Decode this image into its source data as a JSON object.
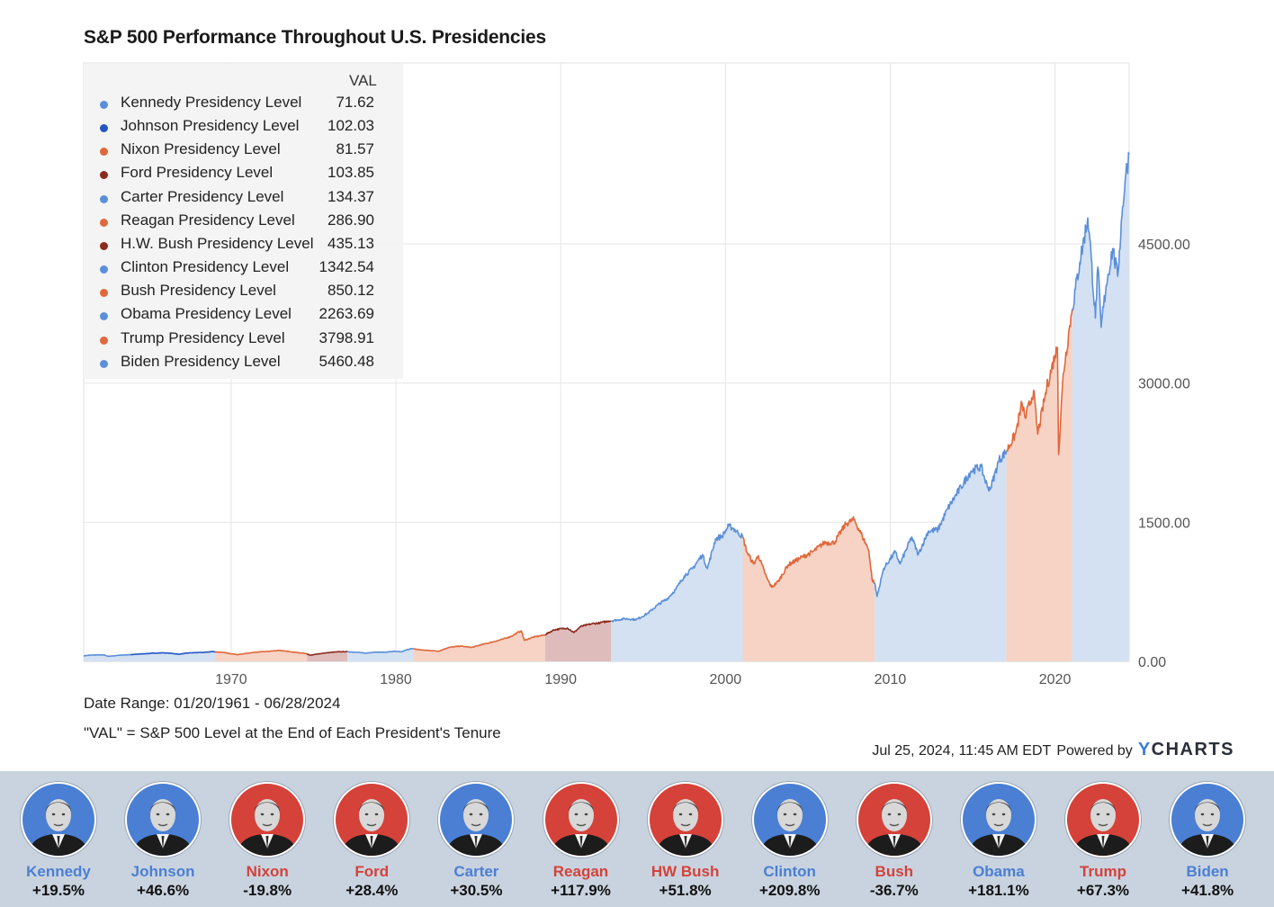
{
  "title": "S&P 500 Performance Throughout U.S. Presidencies",
  "colors": {
    "dem": "#5b8fd9",
    "rep": "#e0683c",
    "rep_dark": "#8c2a1e",
    "dem_dark": "#2456c4",
    "dem_fill": "#d3e1f2",
    "rep_fill": "#f6d3c5",
    "rep_dark_fill": "#dfbcbc",
    "strip_bg": "#c9d3df",
    "portrait_dem": "#4a7fd4",
    "portrait_rep": "#d4423a"
  },
  "legend": {
    "header": "VAL",
    "items": [
      {
        "label": "Kennedy Presidency Level",
        "value": "71.62",
        "color": "#5b8fd9"
      },
      {
        "label": "Johnson Presidency Level",
        "value": "102.03",
        "color": "#2456c4"
      },
      {
        "label": "Nixon Presidency Level",
        "value": "81.57",
        "color": "#e0683c"
      },
      {
        "label": "Ford Presidency Level",
        "value": "103.85",
        "color": "#8c2a1e"
      },
      {
        "label": "Carter Presidency Level",
        "value": "134.37",
        "color": "#5b8fd9"
      },
      {
        "label": "Reagan Presidency Level",
        "value": "286.90",
        "color": "#e0683c"
      },
      {
        "label": "H.W. Bush Presidency Level",
        "value": "435.13",
        "color": "#8c2a1e"
      },
      {
        "label": "Clinton Presidency Level",
        "value": "1342.54",
        "color": "#5b8fd9"
      },
      {
        "label": "Bush Presidency Level",
        "value": "850.12",
        "color": "#e0683c"
      },
      {
        "label": "Obama Presidency Level",
        "value": "2263.69",
        "color": "#5b8fd9"
      },
      {
        "label": "Trump Presidency Level",
        "value": "3798.91",
        "color": "#e0683c"
      },
      {
        "label": "Biden Presidency Level",
        "value": "5460.48",
        "color": "#5b8fd9"
      }
    ]
  },
  "notes": {
    "date_range": "Date Range: 01/20/1961 - 06/28/2024",
    "val_def": "\"VAL\" = S&P 500 Level at the End of Each President's Tenure"
  },
  "footer": {
    "timestamp": "Jul 25, 2024, 11:45 AM EDT",
    "powered": "Powered by",
    "brand_y": "Y",
    "brand_rest": "CHARTS"
  },
  "chart_data": {
    "type": "area",
    "title": "S&P 500 Performance Throughout U.S. Presidencies",
    "xlabel": "",
    "ylabel": "",
    "xlim": [
      1961.05,
      2024.5
    ],
    "ylim": [
      0,
      6450
    ],
    "x_ticks": [
      1970,
      1980,
      1990,
      2000,
      2010,
      2020
    ],
    "x_tick_labels": [
      "1970",
      "1980",
      "1990",
      "2000",
      "2010",
      "2020"
    ],
    "y_ticks": [
      0,
      1500,
      3000,
      4500
    ],
    "y_tick_labels": [
      "0.00",
      "1500.00",
      "3000.00",
      "4500.00"
    ],
    "grid": true,
    "legend_position": "top-left",
    "series": [
      {
        "name": "Kennedy Presidency Level",
        "party": "D",
        "x": [
          1961.05,
          1961.4,
          1961.9,
          1962.3,
          1962.5,
          1962.8,
          1963.2,
          1963.6,
          1963.89
        ],
        "y": [
          60,
          66,
          70,
          68,
          55,
          58,
          66,
          70,
          71.6
        ]
      },
      {
        "name": "Johnson Presidency Level",
        "party": "D",
        "x": [
          1963.89,
          1964.5,
          1965.3,
          1965.9,
          1966.4,
          1966.8,
          1967.5,
          1968.3,
          1968.9,
          1969.05
        ],
        "y": [
          71.6,
          80,
          88,
          92,
          86,
          77,
          92,
          96,
          106,
          102
        ]
      },
      {
        "name": "Nixon Presidency Level",
        "party": "R",
        "x": [
          1969.05,
          1969.6,
          1970.4,
          1970.9,
          1971.5,
          1972.3,
          1972.9,
          1973.5,
          1974.0,
          1974.4,
          1974.6
        ],
        "y": [
          102,
          94,
          72,
          85,
          100,
          107,
          118,
          106,
          95,
          88,
          81.6
        ]
      },
      {
        "name": "Ford Presidency Level",
        "party": "R",
        "x": [
          1974.6,
          1974.8,
          1975.2,
          1975.6,
          1976.0,
          1976.5,
          1977.05
        ],
        "y": [
          81.6,
          66,
          78,
          88,
          96,
          103,
          103.9
        ]
      },
      {
        "name": "Carter Presidency Level",
        "party": "D",
        "x": [
          1977.05,
          1977.6,
          1978.2,
          1978.7,
          1979.3,
          1979.9,
          1980.3,
          1980.9,
          1981.05
        ],
        "y": [
          103.9,
          98,
          88,
          100,
          98,
          108,
          102,
          138,
          134.4
        ]
      },
      {
        "name": "Reagan Presidency Level",
        "party": "R",
        "x": [
          1981.05,
          1981.6,
          1982.6,
          1983.2,
          1983.9,
          1984.6,
          1985.2,
          1985.9,
          1986.5,
          1987.0,
          1987.6,
          1987.8,
          1988.3,
          1988.9,
          1989.05
        ],
        "y": [
          134.4,
          122,
          110,
          150,
          165,
          150,
          180,
          210,
          240,
          270,
          330,
          225,
          260,
          280,
          286.9
        ]
      },
      {
        "name": "H.W. Bush Presidency Level",
        "party": "R",
        "x": [
          1989.05,
          1989.6,
          1990.4,
          1990.8,
          1991.2,
          1991.9,
          1992.4,
          1992.9,
          1993.05
        ],
        "y": [
          286.9,
          340,
          360,
          310,
          375,
          405,
          415,
          435,
          435.1
        ]
      },
      {
        "name": "Clinton Presidency Level",
        "party": "D",
        "x": [
          1993.05,
          1993.9,
          1994.6,
          1995.3,
          1995.9,
          1996.5,
          1997.0,
          1997.5,
          1998.0,
          1998.6,
          1998.9,
          1999.4,
          1999.8,
          2000.2,
          2000.5,
          2000.8,
          2001.05
        ],
        "y": [
          435.1,
          460,
          450,
          520,
          610,
          680,
          780,
          920,
          1000,
          1150,
          1000,
          1320,
          1350,
          1460,
          1430,
          1380,
          1342.5
        ]
      },
      {
        "name": "Bush Presidency Level",
        "party": "R",
        "x": [
          2001.05,
          2001.3,
          2001.7,
          2002.0,
          2002.5,
          2002.8,
          2003.2,
          2003.8,
          2004.5,
          2005.3,
          2006.0,
          2006.6,
          2007.3,
          2007.8,
          2008.3,
          2008.7,
          2008.9,
          2009.05
        ],
        "y": [
          1342.5,
          1180,
          1050,
          1140,
          900,
          800,
          860,
          1040,
          1110,
          1180,
          1280,
          1280,
          1480,
          1530,
          1350,
          1200,
          880,
          850.1
        ]
      },
      {
        "name": "Obama Presidency Level",
        "party": "D",
        "x": [
          2009.05,
          2009.2,
          2009.6,
          2010.3,
          2010.6,
          2011.3,
          2011.7,
          2012.3,
          2012.9,
          2013.5,
          2014.3,
          2014.9,
          2015.5,
          2015.9,
          2016.1,
          2016.6,
          2017.05
        ],
        "y": [
          850.1,
          700,
          1000,
          1180,
          1050,
          1340,
          1150,
          1400,
          1420,
          1650,
          1880,
          2050,
          2100,
          1880,
          1870,
          2170,
          2263.7
        ]
      },
      {
        "name": "Trump Presidency Level",
        "party": "R",
        "x": [
          2017.05,
          2017.6,
          2018.0,
          2018.2,
          2018.7,
          2018.95,
          2019.5,
          2020.0,
          2020.15,
          2020.22,
          2020.5,
          2020.9,
          2021.05
        ],
        "y": [
          2263.7,
          2450,
          2780,
          2620,
          2920,
          2450,
          2950,
          3300,
          3380,
          2230,
          3100,
          3620,
          3798.9
        ]
      },
      {
        "name": "Biden Presidency Level",
        "party": "D",
        "x": [
          2021.05,
          2021.5,
          2021.99,
          2022.2,
          2022.45,
          2022.6,
          2022.8,
          2023.1,
          2023.5,
          2023.8,
          2024.1,
          2024.3,
          2024.5
        ],
        "y": [
          3798.9,
          4300,
          4780,
          4350,
          3700,
          4250,
          3600,
          4050,
          4450,
          4150,
          4900,
          5250,
          5460.5
        ]
      }
    ]
  },
  "presidents": [
    {
      "name": "Kennedy",
      "change": "+19.5%",
      "party": "D"
    },
    {
      "name": "Johnson",
      "change": "+46.6%",
      "party": "D"
    },
    {
      "name": "Nixon",
      "change": "-19.8%",
      "party": "R"
    },
    {
      "name": "Ford",
      "change": "+28.4%",
      "party": "R"
    },
    {
      "name": "Carter",
      "change": "+30.5%",
      "party": "D"
    },
    {
      "name": "Reagan",
      "change": "+117.9%",
      "party": "R"
    },
    {
      "name": "HW Bush",
      "change": "+51.8%",
      "party": "R"
    },
    {
      "name": "Clinton",
      "change": "+209.8%",
      "party": "D"
    },
    {
      "name": "Bush",
      "change": "-36.7%",
      "party": "R"
    },
    {
      "name": "Obama",
      "change": "+181.1%",
      "party": "D"
    },
    {
      "name": "Trump",
      "change": "+67.3%",
      "party": "R"
    },
    {
      "name": "Biden",
      "change": "+41.8%",
      "party": "D"
    }
  ]
}
